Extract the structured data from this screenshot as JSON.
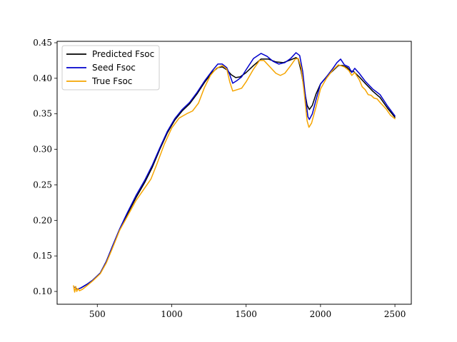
{
  "chart_data": {
    "type": "line",
    "title": "",
    "xlabel": "",
    "ylabel": "",
    "xlim": [
      230,
      2610
    ],
    "ylim": [
      0.082,
      0.452
    ],
    "xticks": [
      500,
      1000,
      1500,
      2000,
      2500
    ],
    "xtick_labels": [
      "500",
      "1000",
      "1500",
      "2000",
      "2500"
    ],
    "yticks": [
      0.1,
      0.15,
      0.2,
      0.25,
      0.3,
      0.35,
      0.4,
      0.45
    ],
    "ytick_labels": [
      "0.10",
      "0.15",
      "0.20",
      "0.25",
      "0.30",
      "0.35",
      "0.40",
      "0.45"
    ],
    "grid": false,
    "legend_position": "top-left",
    "series": [
      {
        "name": "Predicted Fsoc",
        "color": "#000000",
        "points": [
          [
            350,
            0.106
          ],
          [
            365,
            0.103
          ],
          [
            390,
            0.105
          ],
          [
            430,
            0.11
          ],
          [
            470,
            0.116
          ],
          [
            520,
            0.126
          ],
          [
            560,
            0.142
          ],
          [
            600,
            0.162
          ],
          [
            650,
            0.187
          ],
          [
            700,
            0.208
          ],
          [
            760,
            0.232
          ],
          [
            820,
            0.254
          ],
          [
            870,
            0.275
          ],
          [
            920,
            0.3
          ],
          [
            970,
            0.323
          ],
          [
            1020,
            0.341
          ],
          [
            1070,
            0.354
          ],
          [
            1120,
            0.364
          ],
          [
            1170,
            0.378
          ],
          [
            1220,
            0.394
          ],
          [
            1270,
            0.408
          ],
          [
            1310,
            0.415
          ],
          [
            1340,
            0.416
          ],
          [
            1370,
            0.412
          ],
          [
            1400,
            0.405
          ],
          [
            1430,
            0.401
          ],
          [
            1460,
            0.402
          ],
          [
            1500,
            0.408
          ],
          [
            1550,
            0.418
          ],
          [
            1600,
            0.427
          ],
          [
            1650,
            0.427
          ],
          [
            1700,
            0.423
          ],
          [
            1750,
            0.422
          ],
          [
            1800,
            0.426
          ],
          [
            1835,
            0.429
          ],
          [
            1850,
            0.427
          ],
          [
            1870,
            0.41
          ],
          [
            1890,
            0.385
          ],
          [
            1910,
            0.362
          ],
          [
            1925,
            0.356
          ],
          [
            1945,
            0.362
          ],
          [
            1970,
            0.378
          ],
          [
            2000,
            0.392
          ],
          [
            2040,
            0.402
          ],
          [
            2080,
            0.41
          ],
          [
            2120,
            0.418
          ],
          [
            2150,
            0.418
          ],
          [
            2180,
            0.415
          ],
          [
            2200,
            0.41
          ],
          [
            2220,
            0.41
          ],
          [
            2260,
            0.402
          ],
          [
            2300,
            0.393
          ],
          [
            2350,
            0.382
          ],
          [
            2400,
            0.373
          ],
          [
            2450,
            0.358
          ],
          [
            2500,
            0.345
          ]
        ]
      },
      {
        "name": "Seed Fsoc",
        "color": "#0000cc",
        "points": [
          [
            350,
            0.106
          ],
          [
            365,
            0.103
          ],
          [
            390,
            0.105
          ],
          [
            430,
            0.11
          ],
          [
            470,
            0.116
          ],
          [
            520,
            0.126
          ],
          [
            560,
            0.142
          ],
          [
            600,
            0.163
          ],
          [
            650,
            0.188
          ],
          [
            700,
            0.21
          ],
          [
            760,
            0.235
          ],
          [
            820,
            0.257
          ],
          [
            870,
            0.278
          ],
          [
            920,
            0.302
          ],
          [
            970,
            0.325
          ],
          [
            1020,
            0.343
          ],
          [
            1070,
            0.356
          ],
          [
            1120,
            0.366
          ],
          [
            1170,
            0.38
          ],
          [
            1220,
            0.396
          ],
          [
            1270,
            0.41
          ],
          [
            1310,
            0.42
          ],
          [
            1340,
            0.42
          ],
          [
            1370,
            0.415
          ],
          [
            1390,
            0.405
          ],
          [
            1410,
            0.393
          ],
          [
            1440,
            0.397
          ],
          [
            1470,
            0.402
          ],
          [
            1500,
            0.412
          ],
          [
            1550,
            0.428
          ],
          [
            1600,
            0.435
          ],
          [
            1640,
            0.431
          ],
          [
            1680,
            0.424
          ],
          [
            1720,
            0.42
          ],
          [
            1760,
            0.422
          ],
          [
            1800,
            0.428
          ],
          [
            1835,
            0.436
          ],
          [
            1860,
            0.432
          ],
          [
            1880,
            0.41
          ],
          [
            1900,
            0.372
          ],
          [
            1915,
            0.346
          ],
          [
            1925,
            0.342
          ],
          [
            1945,
            0.35
          ],
          [
            1970,
            0.37
          ],
          [
            2000,
            0.392
          ],
          [
            2040,
            0.402
          ],
          [
            2080,
            0.413
          ],
          [
            2110,
            0.422
          ],
          [
            2135,
            0.427
          ],
          [
            2160,
            0.419
          ],
          [
            2190,
            0.416
          ],
          [
            2210,
            0.408
          ],
          [
            2230,
            0.414
          ],
          [
            2260,
            0.407
          ],
          [
            2300,
            0.396
          ],
          [
            2350,
            0.385
          ],
          [
            2400,
            0.377
          ],
          [
            2450,
            0.361
          ],
          [
            2500,
            0.347
          ]
        ]
      },
      {
        "name": "True Fsoc",
        "color": "#f5a500",
        "points": [
          [
            340,
            0.108
          ],
          [
            348,
            0.099
          ],
          [
            355,
            0.107
          ],
          [
            362,
            0.1
          ],
          [
            370,
            0.104
          ],
          [
            380,
            0.101
          ],
          [
            400,
            0.103
          ],
          [
            430,
            0.108
          ],
          [
            470,
            0.115
          ],
          [
            520,
            0.125
          ],
          [
            560,
            0.14
          ],
          [
            600,
            0.16
          ],
          [
            650,
            0.186
          ],
          [
            700,
            0.205
          ],
          [
            760,
            0.228
          ],
          [
            820,
            0.246
          ],
          [
            860,
            0.258
          ],
          [
            900,
            0.279
          ],
          [
            950,
            0.307
          ],
          [
            1000,
            0.33
          ],
          [
            1050,
            0.344
          ],
          [
            1100,
            0.35
          ],
          [
            1140,
            0.354
          ],
          [
            1180,
            0.365
          ],
          [
            1220,
            0.387
          ],
          [
            1260,
            0.404
          ],
          [
            1300,
            0.414
          ],
          [
            1340,
            0.418
          ],
          [
            1370,
            0.413
          ],
          [
            1390,
            0.395
          ],
          [
            1410,
            0.382
          ],
          [
            1440,
            0.384
          ],
          [
            1470,
            0.386
          ],
          [
            1500,
            0.395
          ],
          [
            1550,
            0.413
          ],
          [
            1590,
            0.425
          ],
          [
            1620,
            0.425
          ],
          [
            1660,
            0.416
          ],
          [
            1700,
            0.407
          ],
          [
            1730,
            0.404
          ],
          [
            1760,
            0.407
          ],
          [
            1800,
            0.418
          ],
          [
            1830,
            0.427
          ],
          [
            1850,
            0.428
          ],
          [
            1870,
            0.415
          ],
          [
            1890,
            0.38
          ],
          [
            1910,
            0.34
          ],
          [
            1922,
            0.331
          ],
          [
            1940,
            0.337
          ],
          [
            1970,
            0.36
          ],
          [
            2000,
            0.385
          ],
          [
            2040,
            0.4
          ],
          [
            2080,
            0.411
          ],
          [
            2120,
            0.419
          ],
          [
            2160,
            0.416
          ],
          [
            2190,
            0.411
          ],
          [
            2210,
            0.404
          ],
          [
            2230,
            0.408
          ],
          [
            2260,
            0.398
          ],
          [
            2280,
            0.388
          ],
          [
            2300,
            0.384
          ],
          [
            2320,
            0.377
          ],
          [
            2340,
            0.376
          ],
          [
            2360,
            0.372
          ],
          [
            2380,
            0.371
          ],
          [
            2400,
            0.366
          ],
          [
            2440,
            0.357
          ],
          [
            2470,
            0.348
          ],
          [
            2500,
            0.343
          ]
        ]
      }
    ]
  }
}
